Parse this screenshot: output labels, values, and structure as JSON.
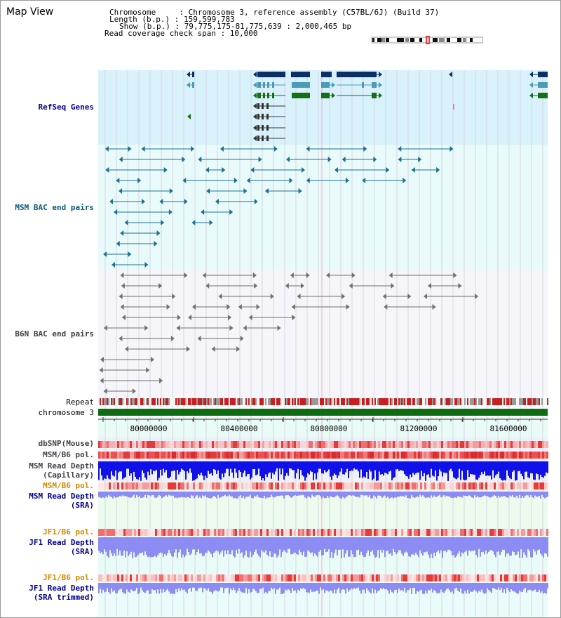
{
  "header": {
    "title": "Map View",
    "chromosome_line": "Chromosome     : Chromosome 3, reference assembly (C57BL/6J) (Build 37)",
    "length_line": "Length (b.p.) : 159,599,783",
    "show_line": "Show (b.p.) : 79,775,175-81,775,639 : 2,000,465 bp",
    "coverage_line": "Read coverage check span : 10,000"
  },
  "tracks": {
    "refseq": "RefSeq Genes",
    "msm_bac": "MSM BAC end pairs",
    "b6n_bac": "B6N BAC end pairs",
    "repeat": "Repeat",
    "chromosome": "chromosome 3",
    "dbsnp": "dbSNP(Mouse)",
    "msm_b6_pol_1": "MSM/B6 pol.",
    "msm_depth_cap_1": "MSM Read Depth",
    "msm_depth_cap_2": "(Capillary)",
    "msm_b6_pol_2": "MSM/B6 pol.",
    "msm_depth_sra_1": "MSM Read Depth",
    "msm_depth_sra_2": "(SRA)",
    "jf1_b6_pol_1": "JF1/B6 pol.",
    "jf1_depth_sra_1": "JF1 Read Depth",
    "jf1_depth_sra_2": "(SRA)",
    "jf1_b6_pol_2": "JF1/B6 pol.",
    "jf1_depth_trim_1": "JF1 Read Depth",
    "jf1_depth_trim_2": "(SRA trimmed)"
  },
  "axis": {
    "ticks": [
      "80000000",
      "80400000",
      "80800000",
      "81200000",
      "81600000"
    ]
  },
  "colors": {
    "refseq_bg": "#d8f1fb",
    "msm_bg": "#e9fafb",
    "b6n_bg": "#f5f5fa",
    "gene_navy": "#0d2f66",
    "gene_teal": "#4a9ab8",
    "gene_green": "#137014",
    "msm_feature": "#1d7090",
    "b6n_feature": "#707070",
    "chromosome": "#0e6d12",
    "snp_red": "#e53a3a",
    "depth_blue": "#1010e8",
    "depth_light": "#8c8cf4"
  }
}
